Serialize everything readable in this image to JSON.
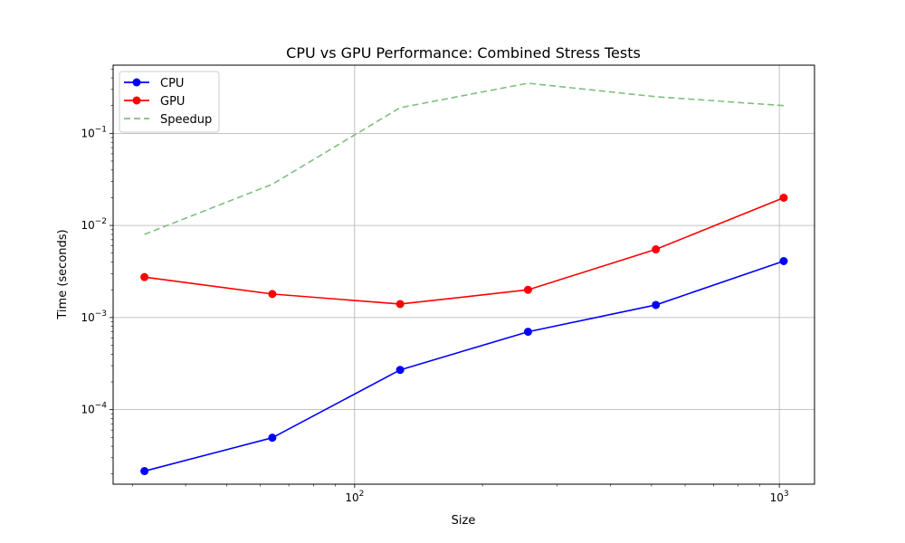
{
  "chart_data": {
    "type": "line",
    "title": "CPU vs GPU Performance: Combined Stress Tests",
    "xlabel": "Size",
    "ylabel": "Time (seconds)",
    "xscale": "log",
    "yscale": "log",
    "xlim": [
      27,
      1210
    ],
    "ylim": [
      1.55e-05,
      0.55
    ],
    "x": [
      32,
      64,
      128,
      256,
      512,
      1024
    ],
    "grid": true,
    "legend": "top-left",
    "series": [
      {
        "name": "CPU",
        "values": [
          2.15e-05,
          4.95e-05,
          0.00027,
          0.0007,
          0.00137,
          0.0041
        ],
        "color": "#0000ff",
        "style": "solid",
        "marker": "circle"
      },
      {
        "name": "GPU",
        "values": [
          0.00275,
          0.0018,
          0.0014,
          0.002,
          0.0055,
          0.02
        ],
        "color": "#ff0000",
        "style": "solid",
        "marker": "circle"
      },
      {
        "name": "Speedup",
        "values": [
          0.008,
          0.028,
          0.19,
          0.35,
          0.25,
          0.2
        ],
        "color": "#7fbf7f",
        "style": "dashed",
        "marker": "none"
      }
    ],
    "x_ticks": [
      {
        "value": 100,
        "base": "10",
        "exp": "2"
      },
      {
        "value": 1000,
        "base": "10",
        "exp": "3"
      }
    ],
    "y_ticks": [
      {
        "value": 0.0001,
        "base": "10",
        "exp": "−4"
      },
      {
        "value": 0.001,
        "base": "10",
        "exp": "−3"
      },
      {
        "value": 0.01,
        "base": "10",
        "exp": "−2"
      },
      {
        "value": 0.1,
        "base": "10",
        "exp": "−1"
      }
    ]
  }
}
